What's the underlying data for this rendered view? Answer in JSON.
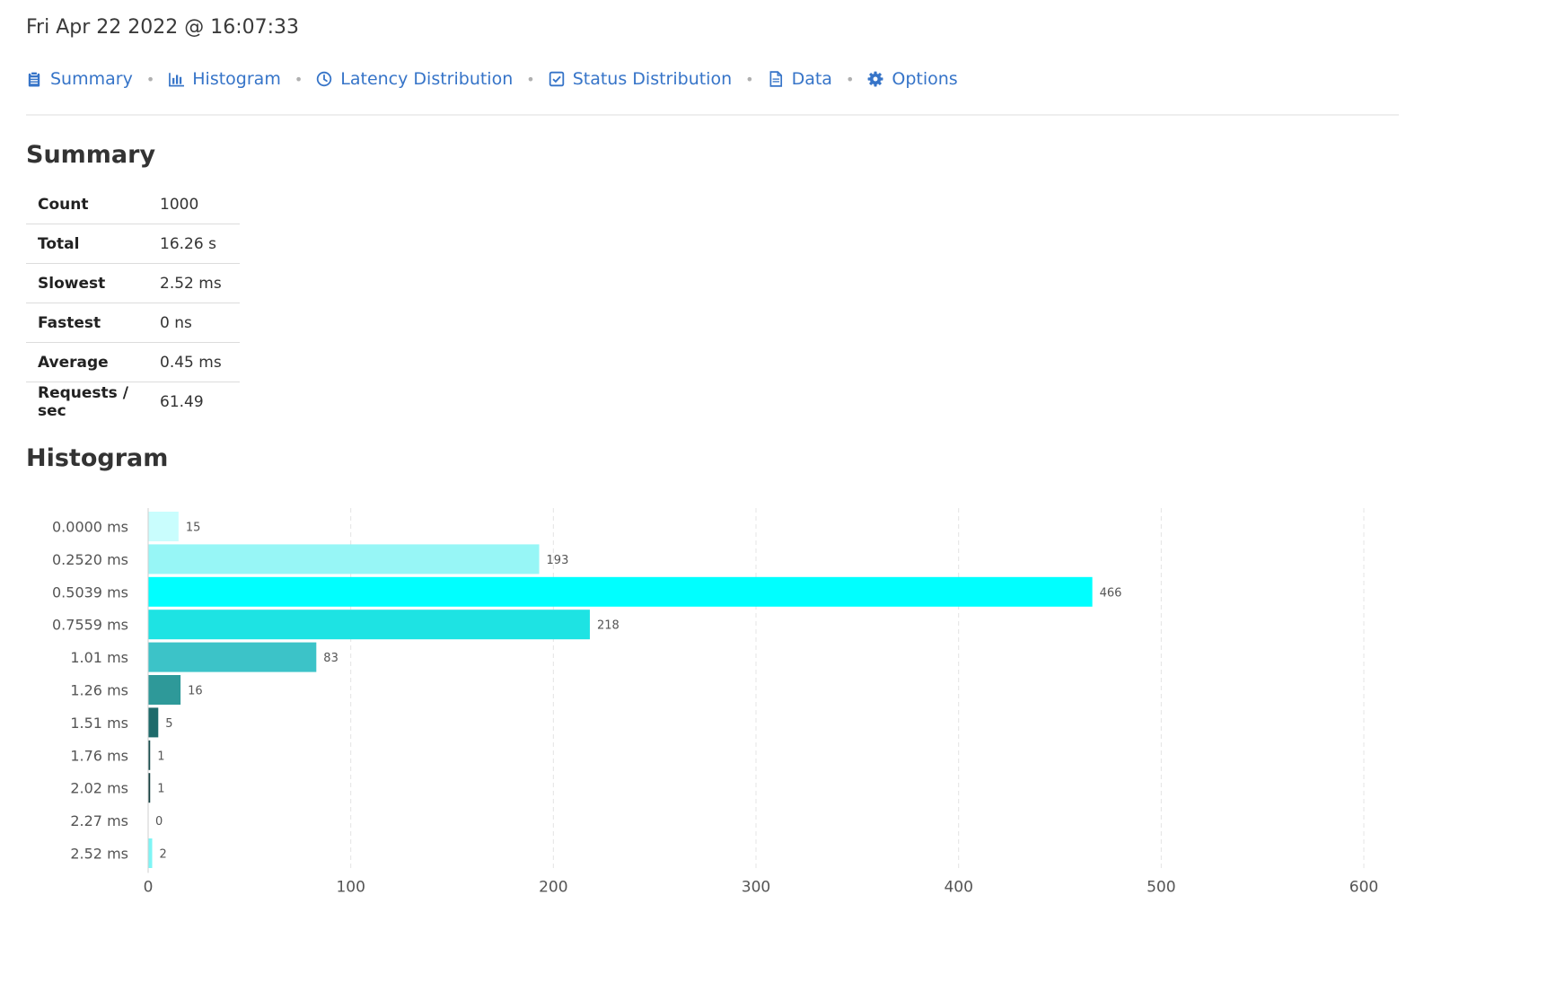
{
  "header": {
    "timestamp": "Fri Apr 22 2022 @ 16:07:33"
  },
  "nav": {
    "items": [
      {
        "label": "Summary",
        "icon": "clipboard-icon"
      },
      {
        "label": "Histogram",
        "icon": "bar-chart-icon"
      },
      {
        "label": "Latency Distribution",
        "icon": "clock-icon"
      },
      {
        "label": "Status Distribution",
        "icon": "check-square-icon"
      },
      {
        "label": "Data",
        "icon": "file-icon"
      },
      {
        "label": "Options",
        "icon": "gear-icon"
      }
    ],
    "separator": "•"
  },
  "summary": {
    "title": "Summary",
    "rows": [
      {
        "label": "Count",
        "value": "1000"
      },
      {
        "label": "Total",
        "value": "16.26 s"
      },
      {
        "label": "Slowest",
        "value": "2.52 ms"
      },
      {
        "label": "Fastest",
        "value": "0 ns"
      },
      {
        "label": "Average",
        "value": "0.45 ms"
      },
      {
        "label": "Requests / sec",
        "value": "61.49"
      }
    ]
  },
  "histogram": {
    "title": "Histogram"
  },
  "chart_data": {
    "type": "bar",
    "orientation": "horizontal",
    "categories": [
      "0.0000 ms",
      "0.2520 ms",
      "0.5039 ms",
      "0.7559 ms",
      "1.01 ms",
      "1.26 ms",
      "1.51 ms",
      "1.76 ms",
      "2.02 ms",
      "2.27 ms",
      "2.52 ms"
    ],
    "values": [
      15,
      193,
      466,
      218,
      83,
      16,
      5,
      1,
      1,
      0,
      2
    ],
    "colors": [
      "#c9fdfd",
      "#97f6f6",
      "#00ffff",
      "#1ee3e3",
      "#3cc3c8",
      "#2e9999",
      "#1e6b6b",
      "#184d4d",
      "#143f3f",
      "#b0f0f0",
      "#7ef5f5"
    ],
    "xlim": [
      0,
      600
    ],
    "xticks": [
      0,
      100,
      200,
      300,
      400,
      500,
      600
    ],
    "grid": true,
    "data_labels": true
  }
}
